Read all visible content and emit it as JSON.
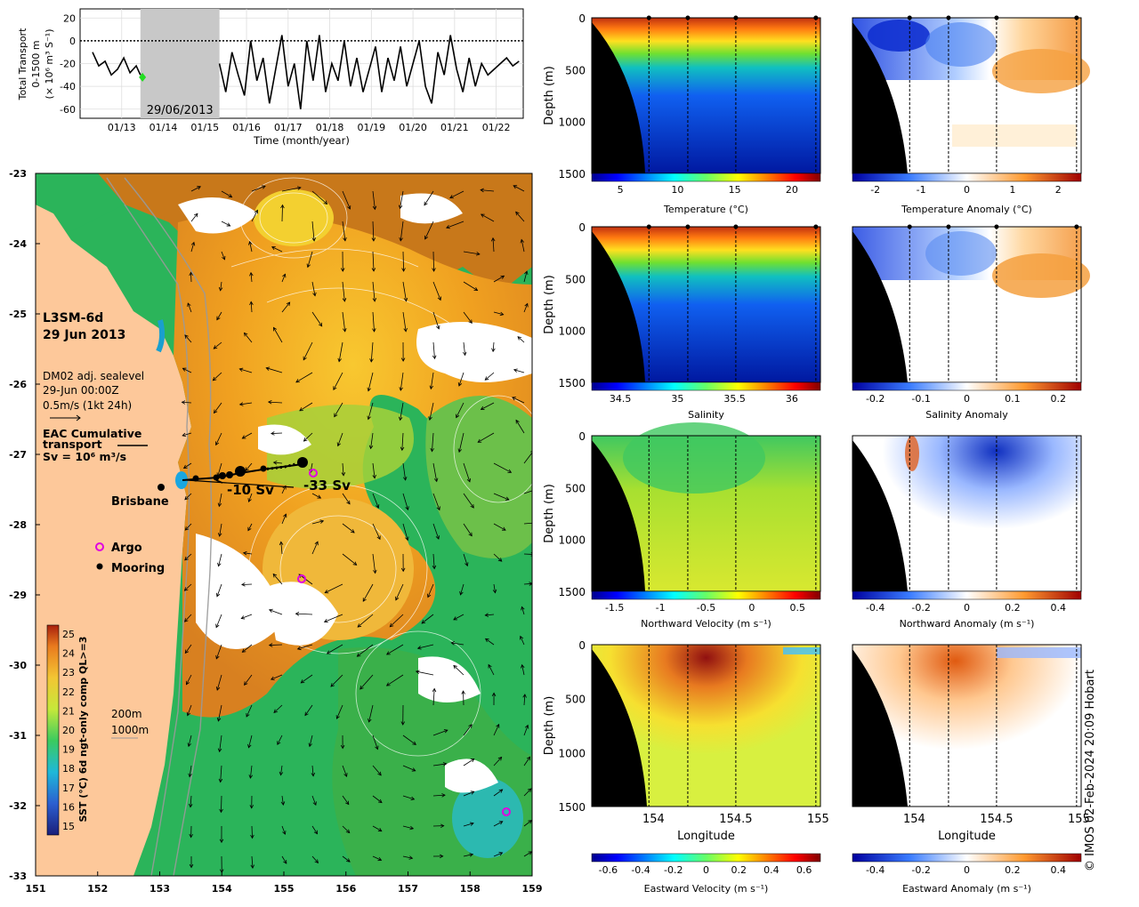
{
  "chart_data": [
    {
      "type": "line",
      "ylabel_lines": [
        "Total Transport",
        "0-1500 m",
        "(× 10⁶ m³ S⁻¹)"
      ],
      "xlabel": "Time (month/year)",
      "x_ticks": [
        "01/13",
        "01/14",
        "01/15",
        "01/16",
        "01/17",
        "01/18",
        "01/19",
        "01/20",
        "01/21",
        "01/22"
      ],
      "y_ticks": [
        20,
        0,
        -20,
        -40,
        -60
      ],
      "ylim": [
        -68,
        28
      ],
      "gap_label": "29/06/2013",
      "gap_start_year": 2013.45,
      "gap_end_year": 2015.35,
      "series": [
        {
          "segment": 1,
          "x_year": [
            2012.3,
            2012.45,
            2012.6,
            2012.75,
            2012.9,
            2013.05,
            2013.2,
            2013.35,
            2013.45
          ],
          "y": [
            -10,
            -22,
            -18,
            -30,
            -25,
            -15,
            -28,
            -22,
            -30
          ]
        },
        {
          "segment": 2,
          "x_year": [
            2015.35,
            2015.5,
            2015.65,
            2015.8,
            2015.95,
            2016.1,
            2016.25,
            2016.4,
            2016.55,
            2016.7,
            2016.85,
            2017.0,
            2017.15,
            2017.3,
            2017.45,
            2017.6,
            2017.75,
            2017.9,
            2018.05,
            2018.2,
            2018.35,
            2018.5,
            2018.65,
            2018.8,
            2018.95,
            2019.1,
            2019.25,
            2019.4,
            2019.55,
            2019.7,
            2019.85,
            2020.0,
            2020.15,
            2020.3,
            2020.45,
            2020.6,
            2020.75,
            2020.9,
            2021.05,
            2021.2,
            2021.35,
            2021.5,
            2021.65,
            2021.8,
            2021.95,
            2022.1,
            2022.25,
            2022.4,
            2022.55
          ],
          "y": [
            -20,
            -45,
            -10,
            -30,
            -48,
            0,
            -35,
            -15,
            -55,
            -25,
            5,
            -40,
            -20,
            -60,
            0,
            -35,
            5,
            -45,
            -20,
            -35,
            0,
            -40,
            -15,
            -45,
            -25,
            -5,
            -45,
            -15,
            -35,
            -5,
            -40,
            -20,
            0,
            -40,
            -55,
            -10,
            -30,
            5,
            -25,
            -45,
            -15,
            -40,
            -20,
            -30,
            -25,
            -20,
            -15,
            -22,
            -18
          ]
        }
      ],
      "marker": {
        "x_year": 2013.5,
        "y": -32,
        "color": "#22dd22"
      }
    },
    {
      "type": "heatmap",
      "label_lines": [
        "L3SM-6d",
        "29 Jun 2013"
      ],
      "info_lines": [
        "DM02 adj. sealevel",
        "29-Jun 00:00Z",
        "0.5m/s (1kt 24h)"
      ],
      "transport_label_lines": [
        "EAC Cumulative",
        "transport",
        "Sv = 10⁶ m³/s"
      ],
      "city_label": "Brisbane",
      "legend": [
        {
          "label": "Argo",
          "symbol": "magenta circle"
        },
        {
          "label": "Mooring",
          "symbol": "black dot"
        }
      ],
      "transport_values": [
        "-10 Sv",
        "-33 Sv"
      ],
      "depth_contours": [
        "200m",
        "1000m"
      ],
      "colorbar_label": "SST (°C) 6d ngt-only comp QL>=3",
      "colorbar_ticks": [
        25,
        24,
        23,
        22,
        21,
        20,
        19,
        18,
        17,
        16,
        15
      ],
      "x_ticks": [
        151,
        152,
        153,
        154,
        155,
        156,
        157,
        158,
        159
      ],
      "y_ticks": [
        -23,
        -24,
        -25,
        -26,
        -27,
        -28,
        -29,
        -30,
        -31,
        -32,
        -33
      ],
      "xlim": [
        151,
        159
      ],
      "ylim": [
        -33,
        -23
      ]
    }
  ],
  "sections": {
    "depth_label": "Depth (m)",
    "depth_ticks": [
      0,
      500,
      1000,
      1500
    ],
    "longitude_label": "Longitude",
    "longitude_ticks": [
      "154",
      "154.5",
      "155"
    ],
    "panels": [
      {
        "id": "temperature",
        "label": "Temperature (°C)",
        "ticks": [
          "5",
          "10",
          "15",
          "20"
        ]
      },
      {
        "id": "temperature-anomaly",
        "label": "Temperature Anomaly (°C)",
        "ticks": [
          "-2",
          "-1",
          "0",
          "1",
          "2"
        ]
      },
      {
        "id": "salinity",
        "label": "Salinity",
        "ticks": [
          "34.5",
          "35",
          "35.5",
          "36"
        ]
      },
      {
        "id": "salinity-anomaly",
        "label": "Salinity Anomaly",
        "ticks": [
          "-0.2",
          "-0.1",
          "0",
          "0.1",
          "0.2"
        ]
      },
      {
        "id": "northward-velocity",
        "label": "Northward Velocity (m s⁻¹)",
        "ticks": [
          "-1.5",
          "-1",
          "-0.5",
          "0",
          "0.5"
        ]
      },
      {
        "id": "northward-anomaly",
        "label": "Northward Anomaly (m s⁻¹)",
        "ticks": [
          "-0.4",
          "-0.2",
          "0",
          "0.2",
          "0.4"
        ]
      },
      {
        "id": "eastward-velocity",
        "label": "Eastward Velocity (m s⁻¹)",
        "ticks": [
          "-0.6",
          "-0.4",
          "-0.2",
          "0",
          "0.2",
          "0.4",
          "0.6"
        ]
      },
      {
        "id": "eastward-anomaly",
        "label": "Eastward Anomaly (m s⁻¹)",
        "ticks": [
          "-0.4",
          "-0.2",
          "0",
          "0.2",
          "0.4"
        ]
      }
    ]
  },
  "credit": "© IMOS 02-Feb-2024 20:09 Hobart",
  "colors": {
    "land": "#fdc89a",
    "jet_low": "#00008f",
    "jet_high": "#800000"
  }
}
